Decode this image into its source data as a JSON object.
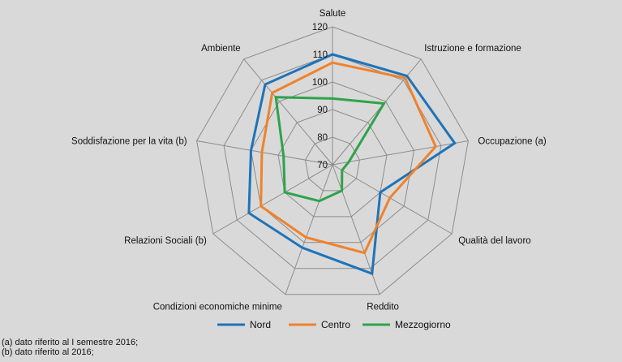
{
  "chart_data": {
    "type": "radar",
    "categories": [
      "Salute",
      "Istruzione e formazione",
      "Occupazione (a)",
      "Qualità del lavoro",
      "Reddito",
      "Condizioni economiche minime",
      "Relazioni Sociali (b)",
      "Soddisfazione per la vita (b)",
      "Ambiente"
    ],
    "ticks": [
      70,
      80,
      90,
      100,
      110,
      120
    ],
    "rlim": [
      70,
      120
    ],
    "series": [
      {
        "name": "Nord",
        "color": "#1f73b7",
        "values": [
          110,
          112,
          115,
          90,
          112,
          102,
          105,
          100,
          108
        ]
      },
      {
        "name": "Centro",
        "color": "#f0822a",
        "values": [
          107,
          111,
          108,
          94,
          104,
          98,
          100,
          96,
          104
        ]
      },
      {
        "name": "Mezzogiorno",
        "color": "#2ea34a",
        "values": [
          94,
          99,
          76,
          74,
          80,
          84,
          90,
          88,
          102
        ]
      }
    ],
    "grid": true,
    "legend": "bottom"
  },
  "footnotes": [
    "(a) dato riferito al I semestre 2016;",
    "(b) dato riferito al 2016;"
  ]
}
